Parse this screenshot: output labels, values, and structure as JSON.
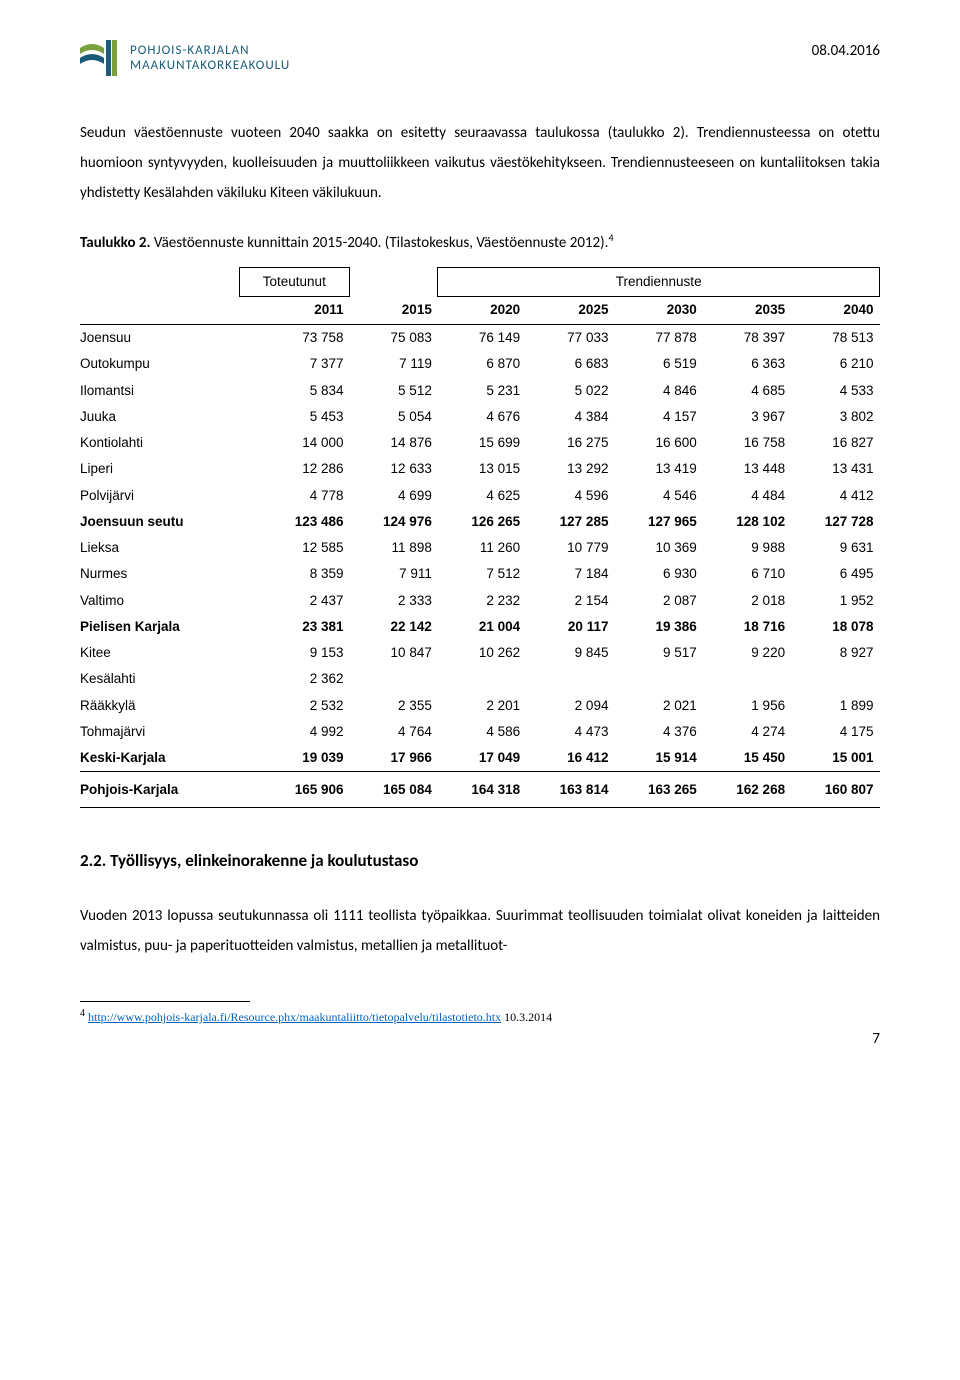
{
  "header": {
    "logo_line1": "POHJOIS-KARJALAN",
    "logo_line2": "MAAKUNTAKORKEAKOULU",
    "date": "08.04.2016"
  },
  "paragraph1": "Seudun väestöennuste vuoteen 2040 saakka on esitetty seuraavassa taulukossa (taulukko 2). Trendiennusteessa on otettu huomioon syntyvyyden, kuolleisuuden ja muuttoliikkeen vaikutus väestökehitykseen. Trendiennusteeseen on kuntaliitoksen takia yhdistetty Kesälahden väkiluku Kiteen väkilukuun.",
  "table_caption_bold": "Taulukko 2.",
  "table_caption_rest": " Väestöennuste kunnittain 2015-2040. (Tilastokeskus, Väestöennuste 2012).",
  "table_caption_sup": "4",
  "table": {
    "header_group1": "Toteutunut",
    "header_group2": "Trendiennuste",
    "years": [
      "2011",
      "2015",
      "2020",
      "2025",
      "2030",
      "2035",
      "2040"
    ],
    "rows": [
      {
        "label": "Joensuu",
        "vals": [
          "73 758",
          "75 083",
          "76 149",
          "77 033",
          "77 878",
          "78 397",
          "78 513"
        ],
        "bold": false
      },
      {
        "label": "Outokumpu",
        "vals": [
          "7 377",
          "7 119",
          "6 870",
          "6 683",
          "6 519",
          "6 363",
          "6 210"
        ],
        "bold": false
      },
      {
        "label": "Ilomantsi",
        "vals": [
          "5 834",
          "5 512",
          "5 231",
          "5 022",
          "4 846",
          "4 685",
          "4 533"
        ],
        "bold": false
      },
      {
        "label": "Juuka",
        "vals": [
          "5 453",
          "5 054",
          "4 676",
          "4 384",
          "4 157",
          "3 967",
          "3 802"
        ],
        "bold": false
      },
      {
        "label": "Kontiolahti",
        "vals": [
          "14 000",
          "14 876",
          "15 699",
          "16 275",
          "16 600",
          "16 758",
          "16 827"
        ],
        "bold": false
      },
      {
        "label": "Liperi",
        "vals": [
          "12 286",
          "12 633",
          "13 015",
          "13 292",
          "13 419",
          "13 448",
          "13 431"
        ],
        "bold": false
      },
      {
        "label": "Polvijärvi",
        "vals": [
          "4 778",
          "4 699",
          "4 625",
          "4 596",
          "4 546",
          "4 484",
          "4 412"
        ],
        "bold": false
      },
      {
        "label": "Joensuun seutu",
        "vals": [
          "123 486",
          "124 976",
          "126 265",
          "127 285",
          "127 965",
          "128 102",
          "127 728"
        ],
        "bold": true
      },
      {
        "label": "Lieksa",
        "vals": [
          "12 585",
          "11 898",
          "11 260",
          "10 779",
          "10 369",
          "9 988",
          "9 631"
        ],
        "bold": false
      },
      {
        "label": "Nurmes",
        "vals": [
          "8 359",
          "7 911",
          "7 512",
          "7 184",
          "6 930",
          "6 710",
          "6 495"
        ],
        "bold": false
      },
      {
        "label": "Valtimo",
        "vals": [
          "2 437",
          "2 333",
          "2 232",
          "2 154",
          "2 087",
          "2 018",
          "1 952"
        ],
        "bold": false
      },
      {
        "label": "Pielisen Karjala",
        "vals": [
          "23 381",
          "22 142",
          "21 004",
          "20 117",
          "19 386",
          "18 716",
          "18 078"
        ],
        "bold": true
      },
      {
        "label": "Kitee",
        "vals": [
          "9 153",
          "10 847",
          "10 262",
          "9 845",
          "9 517",
          "9 220",
          "8 927"
        ],
        "bold": false
      },
      {
        "label": "Kesälahti",
        "vals": [
          "2 362",
          "",
          "",
          "",
          "",
          "",
          ""
        ],
        "bold": false
      },
      {
        "label": "Rääkkylä",
        "vals": [
          "2 532",
          "2 355",
          "2 201",
          "2 094",
          "2 021",
          "1 956",
          "1 899"
        ],
        "bold": false
      },
      {
        "label": "Tohmajärvi",
        "vals": [
          "4 992",
          "4 764",
          "4 586",
          "4 473",
          "4 376",
          "4 274",
          "4 175"
        ],
        "bold": false
      },
      {
        "label": "Keski-Karjala",
        "vals": [
          "19 039",
          "17 966",
          "17 049",
          "16 412",
          "15 914",
          "15 450",
          "15 001"
        ],
        "bold": true
      }
    ],
    "total_row": {
      "label": "Pohjois-Karjala",
      "vals": [
        "165 906",
        "165 084",
        "164 318",
        "163 814",
        "163 265",
        "162 268",
        "160 807"
      ]
    }
  },
  "section_heading": "2.2.    Työllisyys, elinkeinorakenne ja koulutustaso",
  "paragraph2": "Vuoden 2013 lopussa seutukunnassa oli 1111 teollista työpaikkaa. Suurimmat teollisuuden toimialat olivat koneiden ja laitteiden valmistus, puu- ja paperituotteiden valmistus, metallien ja metallituot-",
  "footnote": {
    "num": "4",
    "link_text": "http://www.pohjois-karjala.fi/Resource.phx/maakuntaliitto/tietopalvelu/tilastotieto.htx",
    "tail": " 10.3.2014"
  },
  "page_number": "7"
}
